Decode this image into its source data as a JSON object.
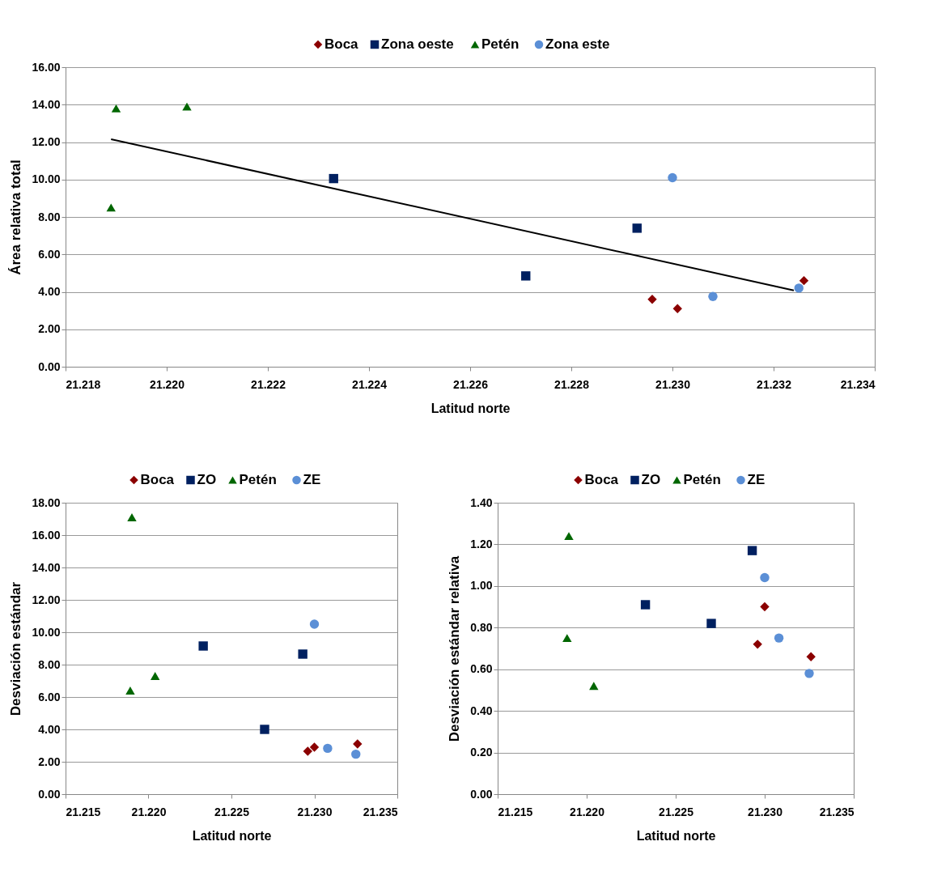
{
  "chart_data": [
    {
      "type": "scatter",
      "xlabel": "Latitud norte",
      "ylabel": "Área relativa total",
      "legend": "top",
      "grid": "y",
      "xlim": [
        21.218,
        21.234
      ],
      "xticks": [
        {
          "value": 21.218,
          "label": "21.218"
        },
        {
          "value": 21.22,
          "label": "21.220"
        },
        {
          "value": 21.222,
          "label": "21.222"
        },
        {
          "value": 21.224,
          "label": "21.224"
        },
        {
          "value": 21.226,
          "label": "21.226"
        },
        {
          "value": 21.228,
          "label": "21.228"
        },
        {
          "value": 21.23,
          "label": "21.230"
        },
        {
          "value": 21.232,
          "label": "21.232"
        },
        {
          "value": 21.234,
          "label": "21.234"
        }
      ],
      "ylim": [
        0,
        16
      ],
      "yticks": [
        {
          "value": 0,
          "label": "0.00"
        },
        {
          "value": 2,
          "label": "2.00"
        },
        {
          "value": 4,
          "label": "4.00"
        },
        {
          "value": 6,
          "label": "6.00"
        },
        {
          "value": 8,
          "label": "8.00"
        },
        {
          "value": 10,
          "label": "10.00"
        },
        {
          "value": 12,
          "label": "12.00"
        },
        {
          "value": 14,
          "label": "14.00"
        },
        {
          "value": 16,
          "label": "16.00"
        }
      ],
      "series": [
        {
          "name": "Boca",
          "color": "#8b0000",
          "marker": "diamond",
          "x": [
            21.2296,
            21.2301,
            21.2326
          ],
          "values": [
            3.6,
            3.1,
            4.6
          ]
        },
        {
          "name": "Zona oeste",
          "color": "#002060",
          "marker": "square",
          "x": [
            21.2233,
            21.2271,
            21.2293
          ],
          "values": [
            10.05,
            4.85,
            7.4
          ]
        },
        {
          "name": "Petén",
          "color": "#006600",
          "marker": "triangle",
          "x": [
            21.219,
            21.2204,
            21.2189
          ],
          "values": [
            13.8,
            13.9,
            8.5
          ]
        },
        {
          "name": "Zona este",
          "color": "#5b8fd6",
          "marker": "circle",
          "x": [
            21.23,
            21.2308,
            21.2325
          ],
          "values": [
            10.1,
            3.75,
            4.2
          ]
        },
        {
          "type": "line",
          "color": "#000000",
          "x": [
            21.2189,
            21.2324
          ],
          "values": [
            12.15,
            4.08
          ]
        }
      ]
    },
    {
      "type": "scatter",
      "xlabel": "Latitud norte",
      "ylabel": "Desviación estándar",
      "legend": "top",
      "grid": "y",
      "xlim": [
        21.215,
        21.235
      ],
      "xticks": [
        {
          "value": 21.215,
          "label": "21.215"
        },
        {
          "value": 21.22,
          "label": "21.220"
        },
        {
          "value": 21.225,
          "label": "21.225"
        },
        {
          "value": 21.23,
          "label": "21.230"
        },
        {
          "value": 21.235,
          "label": "21.235"
        }
      ],
      "ylim": [
        0,
        18
      ],
      "yticks": [
        {
          "value": 0,
          "label": "0.00"
        },
        {
          "value": 2,
          "label": "2.00"
        },
        {
          "value": 4,
          "label": "4.00"
        },
        {
          "value": 6,
          "label": "6.00"
        },
        {
          "value": 8,
          "label": "8.00"
        },
        {
          "value": 10,
          "label": "10.00"
        },
        {
          "value": 12,
          "label": "12.00"
        },
        {
          "value": 14,
          "label": "14.00"
        },
        {
          "value": 16,
          "label": "16.00"
        },
        {
          "value": 18,
          "label": "18.00"
        }
      ],
      "series": [
        {
          "name": "Boca",
          "color": "#8b0000",
          "marker": "diamond",
          "x": [
            21.2296,
            21.23,
            21.2326
          ],
          "values": [
            2.65,
            2.9,
            3.1
          ]
        },
        {
          "name": "ZO",
          "color": "#002060",
          "marker": "square",
          "x": [
            21.2233,
            21.227,
            21.2293
          ],
          "values": [
            9.15,
            4.0,
            8.65
          ]
        },
        {
          "name": "Petén",
          "color": "#006600",
          "marker": "triangle",
          "x": [
            21.219,
            21.2189,
            21.2204
          ],
          "values": [
            17.1,
            6.4,
            7.3
          ]
        },
        {
          "name": "ZE",
          "color": "#5b8fd6",
          "marker": "circle",
          "x": [
            21.23,
            21.2308,
            21.2325
          ],
          "values": [
            10.5,
            2.83,
            2.47
          ]
        }
      ]
    },
    {
      "type": "scatter",
      "xlabel": "Latitud norte",
      "ylabel": "Desviación estándar relativa",
      "legend": "top",
      "grid": "y",
      "xlim": [
        21.215,
        21.235
      ],
      "xticks": [
        {
          "value": 21.215,
          "label": "21.215"
        },
        {
          "value": 21.22,
          "label": "21.220"
        },
        {
          "value": 21.225,
          "label": "21.225"
        },
        {
          "value": 21.23,
          "label": "21.230"
        },
        {
          "value": 21.235,
          "label": "21.235"
        }
      ],
      "ylim": [
        0,
        1.4
      ],
      "yticks": [
        {
          "value": 0,
          "label": "0.00"
        },
        {
          "value": 0.2,
          "label": "0.20"
        },
        {
          "value": 0.4,
          "label": "0.40"
        },
        {
          "value": 0.6,
          "label": "0.60"
        },
        {
          "value": 0.8,
          "label": "0.80"
        },
        {
          "value": 1.0,
          "label": "1.00"
        },
        {
          "value": 1.2,
          "label": "1.20"
        },
        {
          "value": 1.4,
          "label": "1.40"
        }
      ],
      "series": [
        {
          "name": "Boca",
          "color": "#8b0000",
          "marker": "diamond",
          "x": [
            21.2296,
            21.23,
            21.2326
          ],
          "values": [
            0.72,
            0.9,
            0.66
          ]
        },
        {
          "name": "ZO",
          "color": "#002060",
          "marker": "square",
          "x": [
            21.2233,
            21.227,
            21.2293
          ],
          "values": [
            0.91,
            0.82,
            1.17
          ]
        },
        {
          "name": "Petén",
          "color": "#006600",
          "marker": "triangle",
          "x": [
            21.219,
            21.2189,
            21.2204
          ],
          "values": [
            1.24,
            0.75,
            0.52
          ]
        },
        {
          "name": "ZE",
          "color": "#5b8fd6",
          "marker": "circle",
          "x": [
            21.23,
            21.2308,
            21.2325
          ],
          "values": [
            1.04,
            0.75,
            0.58
          ]
        }
      ]
    }
  ]
}
